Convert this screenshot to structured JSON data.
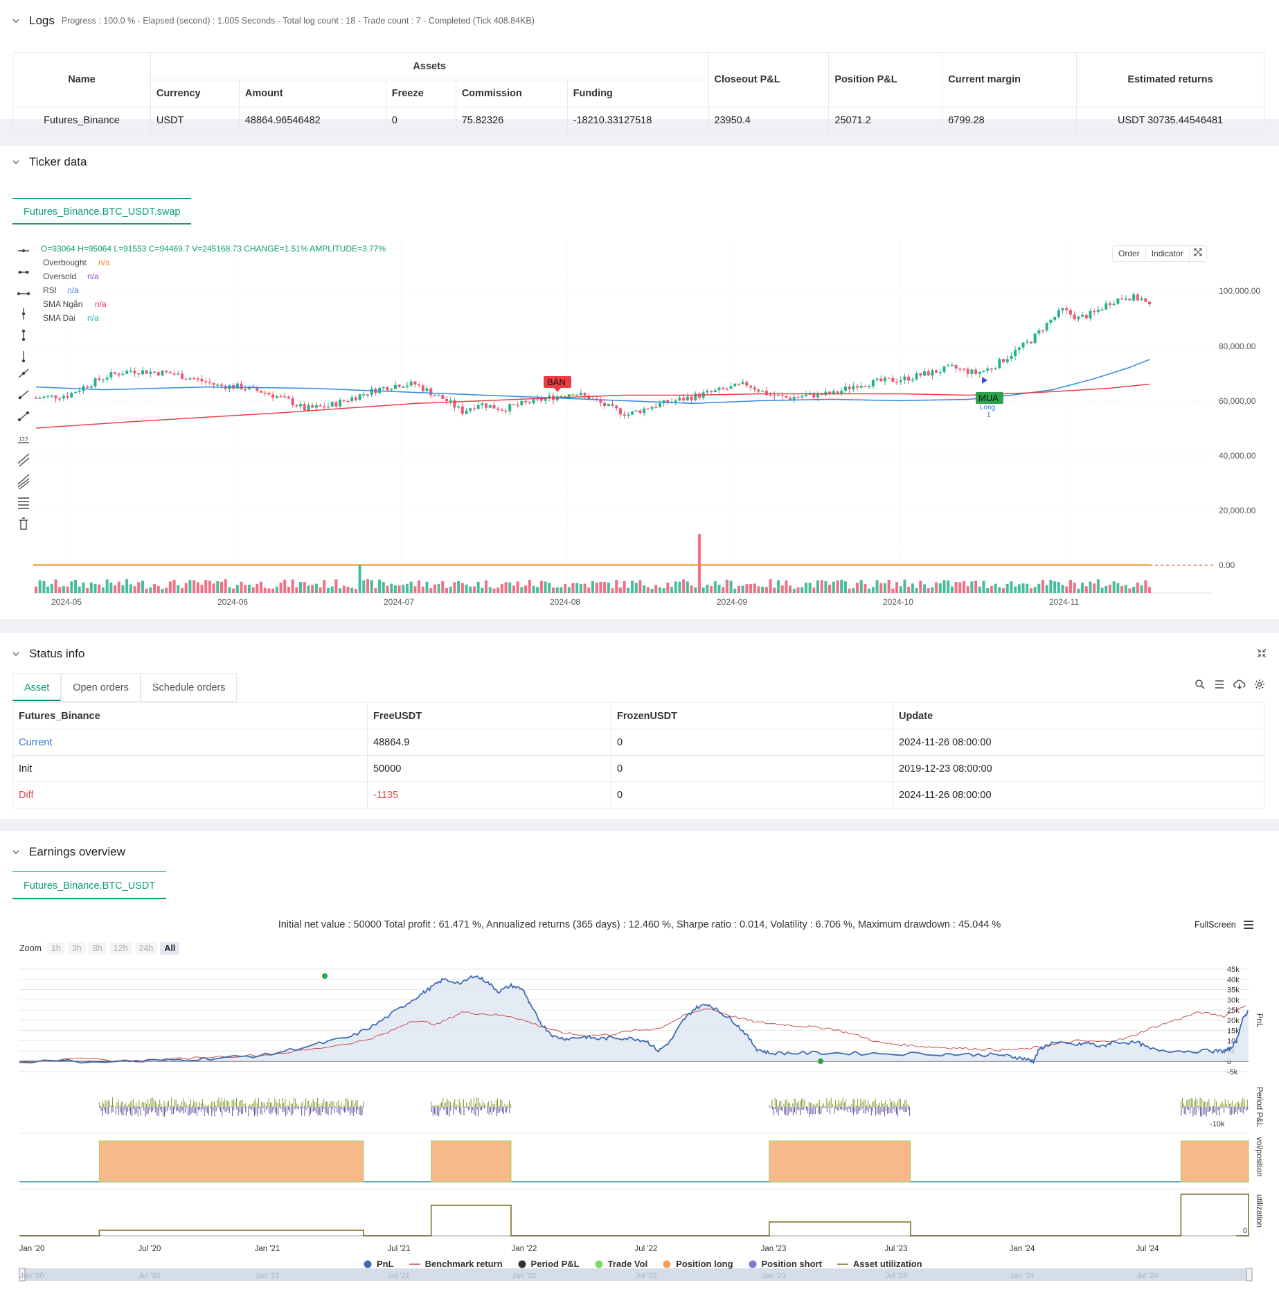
{
  "logs": {
    "title": "Logs",
    "meta": "Progress : 100.0 % - Elapsed (second) : 1.005  Seconds - Total log count : 18 - Trade count : 7 - Completed (Tick 408.84KB)",
    "headers": {
      "name": "Name",
      "assets": "Assets",
      "currency": "Currency",
      "amount": "Amount",
      "freeze": "Freeze",
      "commission": "Commission",
      "funding": "Funding",
      "closeout": "Closeout P&L",
      "position": "Position P&L",
      "margin": "Current margin",
      "returns": "Estimated returns"
    },
    "row": {
      "name": "Futures_Binance",
      "currency": "USDT",
      "amount": "48864.96546482",
      "freeze": "0",
      "commission": "75.82326",
      "funding": "-18210.33127518",
      "closeout": "23950.4",
      "position": "25071.2",
      "margin": "6799.28",
      "returns": "USDT 30735.44546481"
    }
  },
  "ticker": {
    "title": "Ticker data",
    "tab": "Futures_Binance.BTC_USDT.swap",
    "ohlc": "O=93064 H=95064 L=91553 C=94469.7 V=245168.73 CHANGE=1.51% AMPLITUDE=3.77%",
    "buttons": {
      "order": "Order",
      "indicator": "Indicator"
    },
    "legend": [
      {
        "label": "Overbought",
        "value": "n/a",
        "color": "#f08c1e"
      },
      {
        "label": "Oversold",
        "value": "n/a",
        "color": "#9b3fc8"
      },
      {
        "label": "RSI",
        "value": "n/a",
        "color": "#2f7bd8"
      },
      {
        "label": "SMA Ngắn",
        "value": "n/a",
        "color": "#e8336b"
      },
      {
        "label": "SMA Dài",
        "value": "n/a",
        "color": "#17b3b3"
      }
    ],
    "y_ticks": [
      "100,000.00",
      "80,000.00",
      "60,000.00",
      "40,000.00",
      "20,000.00",
      "0.00"
    ],
    "x_ticks": [
      "2024-05",
      "2024-06",
      "2024-07",
      "2024-08",
      "2024-09",
      "2024-10",
      "2024-11"
    ],
    "sell_label": "BÁN",
    "buy_label": "MUA",
    "long_label": "Long",
    "long_qty": "1",
    "colors": {
      "up": "#26b28a",
      "down": "#f0566f",
      "sma_long": "#2f8ae0",
      "sma_short": "#ef3c44"
    }
  },
  "status": {
    "title": "Status info",
    "tabs": [
      "Asset",
      "Open orders",
      "Schedule orders"
    ],
    "headers": [
      "Futures_Binance",
      "FreeUSDT",
      "FrozenUSDT",
      "Update"
    ],
    "rows": [
      {
        "name": "Current",
        "free": "48864.9",
        "frozen": "0",
        "update": "2024-11-26 08:00:00"
      },
      {
        "name": "Init",
        "free": "50000",
        "frozen": "0",
        "update": "2019-12-23 08:00:00"
      },
      {
        "name": "Diff",
        "free": "-1135",
        "frozen": "0",
        "update": "2024-11-26 08:00:00"
      }
    ]
  },
  "earnings": {
    "title": "Earnings overview",
    "tab": "Futures_Binance.BTC_USDT",
    "summary": "Initial net value : 50000 Total profit : 61.471 %, Annualized returns (365 days) : 12.460 %, Sharpe ratio : 0.014, Volatility : 6.706 %, Maximum drawdown : 45.044 %",
    "fullscreen": "FullScreen",
    "zoom_label": "Zoom",
    "zoom": [
      "1h",
      "3h",
      "8h",
      "12h",
      "24h",
      "All"
    ],
    "pnl_ticks": [
      "45k",
      "40k",
      "35k",
      "30k",
      "25k",
      "20k",
      "15k",
      "10k",
      "5k",
      "0",
      "-5k"
    ],
    "period_ticks": [
      "-10k"
    ],
    "zero": "0",
    "axis_titles": [
      "PnL",
      "Period P&L",
      "vol/position",
      "utilization"
    ],
    "x_ticks": [
      "Jan '20",
      "Jul '20",
      "Jan '21",
      "Jul '21",
      "Jan '22",
      "Jul '22",
      "Jan '23",
      "Jul '23",
      "Jan '24",
      "Jul '24"
    ],
    "legend": [
      {
        "label": "PnL",
        "color": "#3d6bb3",
        "type": "dot"
      },
      {
        "label": "Benchmark return",
        "color": "#c0504d",
        "type": "line"
      },
      {
        "label": "Period P&L",
        "color": "#333333",
        "type": "dot"
      },
      {
        "label": "Trade Vol",
        "color": "#7dd96b",
        "type": "dot"
      },
      {
        "label": "Position long",
        "color": "#f5a05a",
        "type": "dot"
      },
      {
        "label": "Position short",
        "color": "#7b7bd6",
        "type": "dot"
      },
      {
        "label": "Asset utilization",
        "color": "#7a6a1e",
        "type": "line"
      }
    ]
  }
}
